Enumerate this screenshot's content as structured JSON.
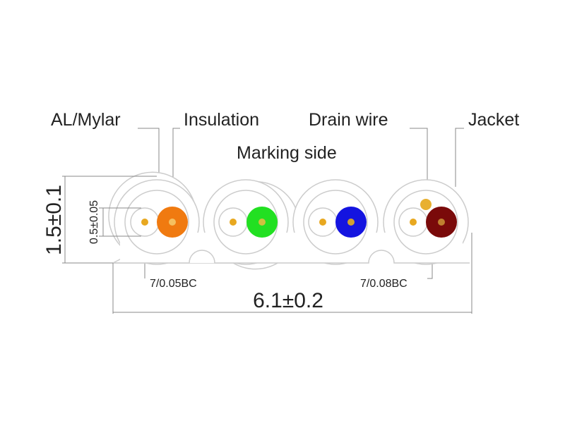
{
  "callouts": [
    "AL/Mylar",
    "Insulation",
    "Drain wire",
    "Jacket"
  ],
  "marking_side": "Marking side",
  "dimensions": {
    "thickness": "1.5±0.1",
    "conductor_gap": "0.5±0.05",
    "width": "6.1±0.2"
  },
  "conductor_specs": [
    "7/0.05BC",
    "7/0.08BC"
  ]
}
